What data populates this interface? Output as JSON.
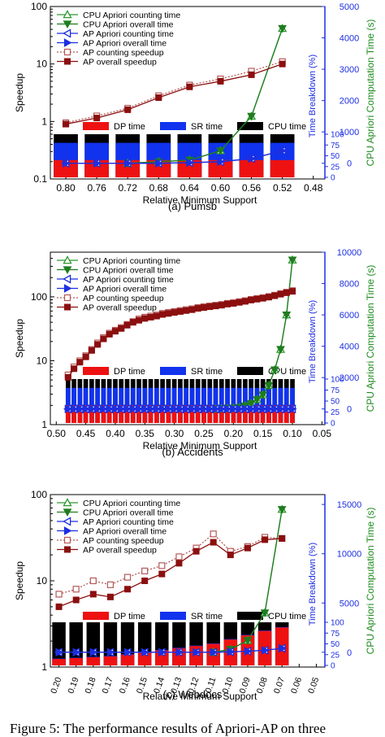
{
  "colors": {
    "cpu_count": "#2e9a2e",
    "cpu_overall": "#1e7d1e",
    "ap_line": "#1d2fe0",
    "ap_count_speedup": "#b55a5a",
    "ap_overall_speedup": "#8b0f0f",
    "dp": "#ee1111",
    "sr": "#1133ee",
    "cpu_time": "#000000",
    "right_axis_blue": "#1d2fe0",
    "right_axis_green": "#1e8b1e"
  },
  "legend": {
    "cpu_count": "CPU Apriori counting time",
    "cpu_overall": "CPU Apriori overall time",
    "ap_count": "AP Apriori counting time",
    "ap_overall": "AP Apriori overall time",
    "ap_count_speedup": "AP counting speedup",
    "ap_overall_speedup": "AP overall speedup",
    "dp": "DP time",
    "sr": "SR time",
    "cpu": "CPU time"
  },
  "axis_labels": {
    "left": "Speedup",
    "right_blue": "Time Breakdown (%)",
    "right_green": "CPU Apriori Computation Time (s)",
    "x": "Relative Minimum Support"
  },
  "chart_data": [
    {
      "type": "line",
      "caption": "(a) Pumsb",
      "x_ticks": [
        "0.80",
        "0.76",
        "0.72",
        "0.68",
        "0.64",
        "0.60",
        "0.56",
        "0.52",
        "0.48"
      ],
      "x": [
        0.8,
        0.76,
        0.72,
        0.68,
        0.64,
        0.6,
        0.56,
        0.52
      ],
      "xlim": [
        0.82,
        0.465
      ],
      "left_axis": {
        "scale": "log",
        "ylim": [
          0.1,
          100
        ],
        "ticks": [
          "0.1",
          "1",
          "10",
          "100"
        ]
      },
      "right_time_axis": {
        "ylim": [
          -500,
          5000
        ],
        "ticks": [
          "0",
          "1000",
          "2000",
          "3000",
          "4000",
          "5000"
        ]
      },
      "breakdown_axis": {
        "ticks": [
          "0",
          "25",
          "50",
          "75",
          "100"
        ]
      },
      "series": [
        {
          "name": "CPU Apriori counting time",
          "axis": "time",
          "values": [
            null,
            null,
            0,
            50,
            100,
            400,
            1500,
            4300
          ]
        },
        {
          "name": "CPU Apriori overall time",
          "axis": "time",
          "values": [
            null,
            null,
            0,
            50,
            100,
            400,
            1500,
            4300
          ]
        },
        {
          "name": "AP Apriori counting time",
          "axis": "time",
          "values": [
            0,
            0,
            0,
            0,
            20,
            50,
            150,
            400
          ]
        },
        {
          "name": "AP Apriori overall time",
          "axis": "time",
          "values": [
            0,
            0,
            0,
            0,
            20,
            50,
            150,
            400
          ]
        },
        {
          "name": "AP counting speedup",
          "axis": "speedup",
          "values": [
            0.95,
            1.25,
            1.7,
            2.8,
            4.3,
            5.5,
            7.5,
            11
          ]
        },
        {
          "name": "AP overall speedup",
          "axis": "speedup",
          "values": [
            0.9,
            1.15,
            1.6,
            2.6,
            4,
            5,
            6.5,
            10
          ]
        }
      ],
      "breakdown": {
        "dp": [
          40,
          40,
          40,
          40,
          40,
          40,
          40,
          40
        ],
        "sr": [
          80,
          80,
          80,
          80,
          80,
          80,
          80,
          80
        ]
      }
    },
    {
      "type": "line",
      "caption": "(b) Accidents",
      "x_ticks": [
        "0.50",
        "0.45",
        "0.40",
        "0.35",
        "0.30",
        "0.25",
        "0.20",
        "0.15",
        "0.10",
        "0.05"
      ],
      "x": [
        0.48,
        0.47,
        0.46,
        0.45,
        0.44,
        0.43,
        0.42,
        0.41,
        0.4,
        0.39,
        0.38,
        0.37,
        0.36,
        0.35,
        0.34,
        0.33,
        0.32,
        0.31,
        0.3,
        0.29,
        0.28,
        0.27,
        0.26,
        0.25,
        0.24,
        0.23,
        0.22,
        0.21,
        0.2,
        0.19,
        0.18,
        0.17,
        0.16,
        0.15,
        0.14,
        0.13,
        0.12,
        0.11,
        0.1
      ],
      "xlim": [
        0.51,
        0.045
      ],
      "left_axis": {
        "scale": "log",
        "ylim": [
          1,
          500
        ],
        "ticks": [
          "1",
          "10",
          "100"
        ]
      },
      "right_time_axis": {
        "ylim": [
          -1000,
          10000
        ],
        "ticks": [
          "0",
          "2000",
          "4000",
          "6000",
          "8000",
          "10000"
        ]
      },
      "breakdown_axis": {
        "ticks": [
          "0",
          "25",
          "50",
          "75",
          "100"
        ]
      },
      "series": [
        {
          "name": "CPU Apriori counting time",
          "axis": "time",
          "values": [
            null,
            null,
            null,
            null,
            null,
            null,
            null,
            null,
            null,
            null,
            null,
            null,
            null,
            null,
            null,
            null,
            null,
            null,
            null,
            null,
            null,
            null,
            null,
            null,
            null,
            0,
            20,
            40,
            60,
            100,
            200,
            350,
            600,
            900,
            1500,
            2500,
            3800,
            6000,
            9500
          ]
        },
        {
          "name": "CPU Apriori overall time",
          "axis": "time",
          "values": [
            null,
            null,
            null,
            null,
            null,
            null,
            null,
            null,
            null,
            null,
            null,
            null,
            null,
            null,
            null,
            null,
            null,
            null,
            null,
            null,
            null,
            null,
            null,
            null,
            null,
            0,
            20,
            40,
            60,
            100,
            200,
            350,
            600,
            900,
            1500,
            2500,
            3800,
            6000,
            9500
          ]
        },
        {
          "name": "AP Apriori counting time",
          "axis": "time",
          "values": [
            0,
            0,
            0,
            0,
            0,
            0,
            0,
            0,
            0,
            0,
            0,
            0,
            0,
            0,
            0,
            0,
            0,
            0,
            0,
            0,
            0,
            0,
            0,
            0,
            0,
            0,
            0,
            0,
            0,
            0,
            0,
            0,
            0,
            0,
            0,
            0,
            0,
            0,
            0
          ]
        },
        {
          "name": "AP Apriori overall time",
          "axis": "time",
          "values": [
            0,
            0,
            0,
            0,
            0,
            0,
            0,
            0,
            0,
            0,
            0,
            0,
            0,
            0,
            0,
            0,
            0,
            0,
            0,
            0,
            0,
            0,
            0,
            0,
            0,
            0,
            0,
            0,
            0,
            0,
            0,
            0,
            0,
            0,
            0,
            0,
            0,
            0,
            0
          ]
        },
        {
          "name": "AP counting speedup",
          "axis": "speedup",
          "values": [
            6,
            8,
            10,
            12,
            15,
            19,
            23,
            27,
            30,
            33,
            37,
            41,
            45,
            48,
            50,
            52,
            55,
            57,
            59,
            61,
            63,
            65,
            68,
            70,
            72,
            74,
            76,
            79,
            81,
            84,
            87,
            91,
            94,
            97,
            101,
            106,
            112,
            118,
            125
          ]
        },
        {
          "name": "AP overall speedup",
          "axis": "speedup",
          "values": [
            5.5,
            7.5,
            9.5,
            11.5,
            14.5,
            18,
            22,
            26,
            29,
            32,
            36,
            40,
            43,
            46,
            48,
            50,
            53,
            55,
            57,
            59,
            61,
            63,
            66,
            68,
            70,
            72,
            74,
            77,
            79,
            82,
            85,
            89,
            92,
            95,
            99,
            104,
            110,
            116,
            122
          ]
        }
      ],
      "breakdown": {
        "dp": [
          40,
          40,
          40,
          40,
          40,
          40,
          40,
          40,
          40,
          40,
          40,
          40,
          40,
          40,
          40,
          40,
          40,
          40,
          40,
          40,
          40,
          40,
          40,
          40,
          40,
          40,
          40,
          40,
          40,
          40,
          40,
          40,
          40,
          40,
          40,
          40,
          40,
          40,
          40
        ],
        "sr": [
          80,
          80,
          80,
          80,
          80,
          80,
          80,
          80,
          80,
          80,
          80,
          80,
          80,
          80,
          80,
          80,
          80,
          80,
          80,
          80,
          80,
          80,
          80,
          80,
          80,
          80,
          80,
          80,
          80,
          80,
          80,
          80,
          80,
          80,
          80,
          80,
          80,
          80,
          80
        ]
      }
    },
    {
      "type": "line",
      "caption": "(c) Webdocs",
      "x_ticks": [
        "0.20",
        "0.19",
        "0.18",
        "0.17",
        "0.16",
        "0.15",
        "0.14",
        "0.13",
        "0.12",
        "0.11",
        "0.10",
        "0.09",
        "0.08",
        "0.07",
        "0.06",
        "0.05"
      ],
      "x": [
        0.2,
        0.19,
        0.18,
        0.17,
        0.16,
        0.15,
        0.14,
        0.13,
        0.12,
        0.11,
        0.1,
        0.09,
        0.08,
        0.07
      ],
      "xlim": [
        0.205,
        0.045
      ],
      "left_axis": {
        "scale": "log",
        "ylim": [
          1,
          100
        ],
        "ticks": [
          "1",
          "10",
          "100"
        ]
      },
      "right_time_axis": {
        "ylim": [
          -1500,
          16000
        ],
        "ticks": [
          "0",
          "5000",
          "10000",
          "15000"
        ]
      },
      "breakdown_axis": {
        "ticks": [
          "0",
          "25",
          "50",
          "75",
          "100"
        ]
      },
      "series": [
        {
          "name": "CPU Apriori counting time",
          "axis": "time",
          "values": [
            null,
            null,
            null,
            null,
            null,
            null,
            null,
            null,
            null,
            0,
            300,
            1200,
            4000,
            14500
          ]
        },
        {
          "name": "CPU Apriori overall time",
          "axis": "time",
          "values": [
            null,
            null,
            null,
            null,
            null,
            null,
            null,
            null,
            null,
            0,
            300,
            1200,
            4000,
            14500
          ]
        },
        {
          "name": "AP Apriori counting time",
          "axis": "time",
          "values": [
            0,
            0,
            0,
            0,
            0,
            0,
            0,
            0,
            0,
            0,
            50,
            100,
            200,
            400
          ]
        },
        {
          "name": "AP Apriori overall time",
          "axis": "time",
          "values": [
            0,
            0,
            0,
            0,
            0,
            0,
            0,
            0,
            0,
            0,
            50,
            100,
            200,
            400
          ]
        },
        {
          "name": "AP counting speedup",
          "axis": "speedup",
          "values": [
            7,
            8,
            10,
            9,
            11,
            13,
            15,
            19,
            24,
            35,
            22,
            25,
            32,
            31
          ]
        },
        {
          "name": "AP overall speedup",
          "axis": "speedup",
          "values": [
            5,
            6,
            7,
            6.5,
            8,
            10,
            12,
            16,
            22,
            28,
            20,
            24,
            30,
            31
          ]
        }
      ],
      "breakdown": {
        "dp": [
          15,
          17,
          19,
          21,
          25,
          30,
          35,
          40,
          45,
          50,
          60,
          70,
          80,
          88
        ],
        "sr": [
          16,
          18,
          20,
          22,
          26,
          31,
          36,
          41,
          46,
          51,
          61,
          71,
          81,
          89
        ]
      }
    }
  ],
  "figure_caption": "Figure 5: The performance results of Apriori-AP on three"
}
